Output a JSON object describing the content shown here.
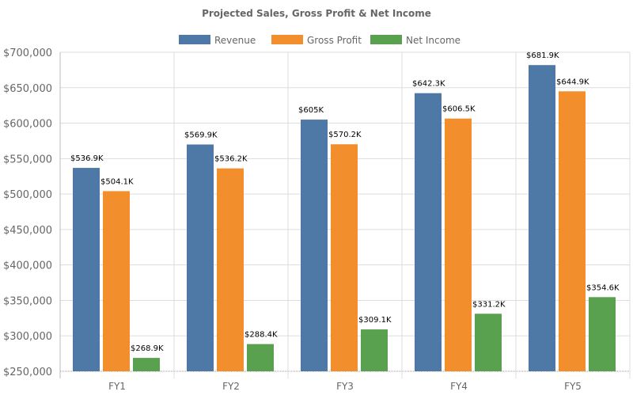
{
  "chart_data": {
    "type": "bar",
    "title": "Projected Sales, Gross Profit & Net Income",
    "categories": [
      "FY1",
      "FY2",
      "FY3",
      "FY4",
      "FY5"
    ],
    "series": [
      {
        "name": "Revenue",
        "color": "#4e79a7",
        "values": [
          536900,
          569900,
          605000,
          642300,
          681900
        ],
        "labels": [
          "$536.9K",
          "$569.9K",
          "$605K",
          "$642.3K",
          "$681.9K"
        ]
      },
      {
        "name": "Gross Profit",
        "color": "#f28e2b",
        "values": [
          504100,
          536200,
          570200,
          606500,
          644900
        ],
        "labels": [
          "$504.1K",
          "$536.2K",
          "$570.2K",
          "$606.5K",
          "$644.9K"
        ]
      },
      {
        "name": "Net Income",
        "color": "#59a14f",
        "values": [
          268900,
          288400,
          309100,
          331200,
          354600
        ],
        "labels": [
          "$268.9K",
          "$288.4K",
          "$309.1K",
          "$331.2K",
          "$354.6K"
        ]
      }
    ],
    "ylim": [
      250000,
      700000
    ],
    "yticks": [
      250000,
      300000,
      350000,
      400000,
      450000,
      500000,
      550000,
      600000,
      650000,
      700000
    ],
    "ytick_labels": [
      "$250,000",
      "$300,000",
      "$350,000",
      "$400,000",
      "$450,000",
      "$500,000",
      "$550,000",
      "$600,000",
      "$650,000",
      "$700,000"
    ],
    "grid": true,
    "legend": "top-center"
  }
}
